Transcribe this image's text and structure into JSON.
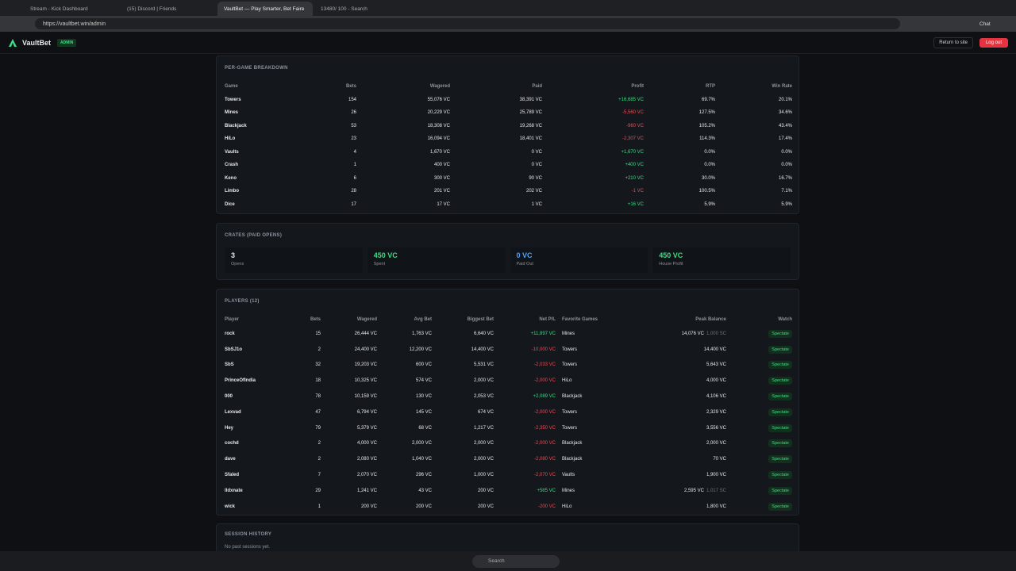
{
  "browser": {
    "tabs": [
      "Stream - Kick Dashboard",
      "(15) Discord | Friends",
      "VaultBet — Play Smarter, Bet Faire",
      "13480/ 100 - Search"
    ],
    "url": "https://vaultbet.win/admin",
    "chat": "Chat"
  },
  "header": {
    "brand": "VaultBet",
    "badge": "ADMIN",
    "return": "Return to site",
    "logout": "Log out"
  },
  "games": {
    "title": "PER-GAME BREAKDOWN",
    "columns": [
      "Game",
      "Bets",
      "Wagered",
      "Paid",
      "Profit",
      "RTP",
      "Win Rate"
    ],
    "rows": [
      [
        "Towers",
        154,
        "55,076 VC",
        "38,391 VC",
        "+16,685 VC",
        "69.7%",
        "20.1%"
      ],
      [
        "Mines",
        26,
        "20,229 VC",
        "25,789 VC",
        "-5,560 VC",
        "127.5%",
        "34.6%"
      ],
      [
        "Blackjack",
        53,
        "18,308 VC",
        "19,268 VC",
        "-960 VC",
        "105.2%",
        "43.4%"
      ],
      [
        "HiLo",
        23,
        "16,094 VC",
        "18,401 VC",
        "-2,307 VC",
        "114.3%",
        "17.4%"
      ],
      [
        "Vaults",
        4,
        "1,670 VC",
        "0 VC",
        "+1,670 VC",
        "0.0%",
        "0.0%"
      ],
      [
        "Crash",
        1,
        "400 VC",
        "0 VC",
        "+400 VC",
        "0.0%",
        "0.0%"
      ],
      [
        "Keno",
        6,
        "300 VC",
        "90 VC",
        "+210 VC",
        "30.0%",
        "16.7%"
      ],
      [
        "Limbo",
        28,
        "201 VC",
        "202 VC",
        "-1 VC",
        "100.5%",
        "7.1%"
      ],
      [
        "Dice",
        17,
        "17 VC",
        "1 VC",
        "+16 VC",
        "5.9%",
        "5.9%"
      ]
    ]
  },
  "crates": {
    "title": "CRATES (PAID OPENS)",
    "stats": [
      {
        "value": "3",
        "label": "Opens"
      },
      {
        "value": "450 VC",
        "label": "Spent"
      },
      {
        "value": "0 VC",
        "label": "Paid Out"
      },
      {
        "value": "450 VC",
        "label": "House Profit"
      }
    ]
  },
  "players": {
    "title": "PLAYERS (12)",
    "columns": [
      "Player",
      "Bets",
      "Wagered",
      "Avg Bet",
      "Biggest Bet",
      "Net P/L",
      "Favorite Games",
      "Peak Balance",
      "Watch"
    ],
    "watch_label": "Spectate",
    "rows": [
      {
        "player": "rock",
        "bets": 15,
        "wagered": "26,444 VC",
        "avg": "1,763 VC",
        "biggest": "6,640 VC",
        "net": "+11,897 VC",
        "favorite": "Mines",
        "peak": "14,076 VC",
        "peak_sc": "1,000 SC"
      },
      {
        "player": "SbSJ1o",
        "bets": 2,
        "wagered": "24,400 VC",
        "avg": "12,200 VC",
        "biggest": "14,400 VC",
        "net": "-10,000 VC",
        "favorite": "Towers",
        "peak": "14,400 VC"
      },
      {
        "player": "SbS",
        "bets": 32,
        "wagered": "19,203 VC",
        "avg": "600 VC",
        "biggest": "5,531 VC",
        "net": "-2,033 VC",
        "favorite": "Towers",
        "peak": "5,643 VC"
      },
      {
        "player": "PrinceOfIndia",
        "bets": 18,
        "wagered": "10,325 VC",
        "avg": "574 VC",
        "biggest": "2,000 VC",
        "net": "-2,000 VC",
        "favorite": "HiLo",
        "peak": "4,000 VC"
      },
      {
        "player": "000",
        "bets": 78,
        "wagered": "10,159 VC",
        "avg": "130 VC",
        "biggest": "2,053 VC",
        "net": "+2,089 VC",
        "favorite": "Blackjack",
        "peak": "4,106 VC"
      },
      {
        "player": "Lexvad",
        "bets": 47,
        "wagered": "6,794 VC",
        "avg": "145 VC",
        "biggest": "674 VC",
        "net": "-2,000 VC",
        "favorite": "Towers",
        "peak": "2,329 VC"
      },
      {
        "player": "Hey",
        "bets": 79,
        "wagered": "5,379 VC",
        "avg": "68 VC",
        "biggest": "1,217 VC",
        "net": "-2,350 VC",
        "favorite": "Towers",
        "peak": "3,556 VC"
      },
      {
        "player": "cochd",
        "bets": 2,
        "wagered": "4,000 VC",
        "avg": "2,000 VC",
        "biggest": "2,000 VC",
        "net": "-2,000 VC",
        "favorite": "Blackjack",
        "peak": "2,000 VC"
      },
      {
        "player": "dave",
        "bets": 2,
        "wagered": "2,080 VC",
        "avg": "1,040 VC",
        "biggest": "2,000 VC",
        "net": "-2,080 VC",
        "favorite": "Blackjack",
        "peak": "70 VC"
      },
      {
        "player": "Sfaled",
        "bets": 7,
        "wagered": "2,070 VC",
        "avg": "296 VC",
        "biggest": "1,000 VC",
        "net": "-2,070 VC",
        "favorite": "Vaults",
        "peak": "1,900 VC"
      },
      {
        "player": "lldxnate",
        "bets": 29,
        "wagered": "1,241 VC",
        "avg": "43 VC",
        "biggest": "200 VC",
        "net": "+585 VC",
        "favorite": "Mines",
        "peak": "2,595 VC",
        "peak_sc": "1,017 SC"
      },
      {
        "player": "wick",
        "bets": 1,
        "wagered": "200 VC",
        "avg": "200 VC",
        "biggest": "200 VC",
        "net": "-200 VC",
        "favorite": "HiLo",
        "peak": "1,800 VC"
      }
    ]
  },
  "sessions": {
    "title": "SESSION HISTORY",
    "empty": "No past sessions yet."
  },
  "taskbar": {
    "search": "Search"
  }
}
